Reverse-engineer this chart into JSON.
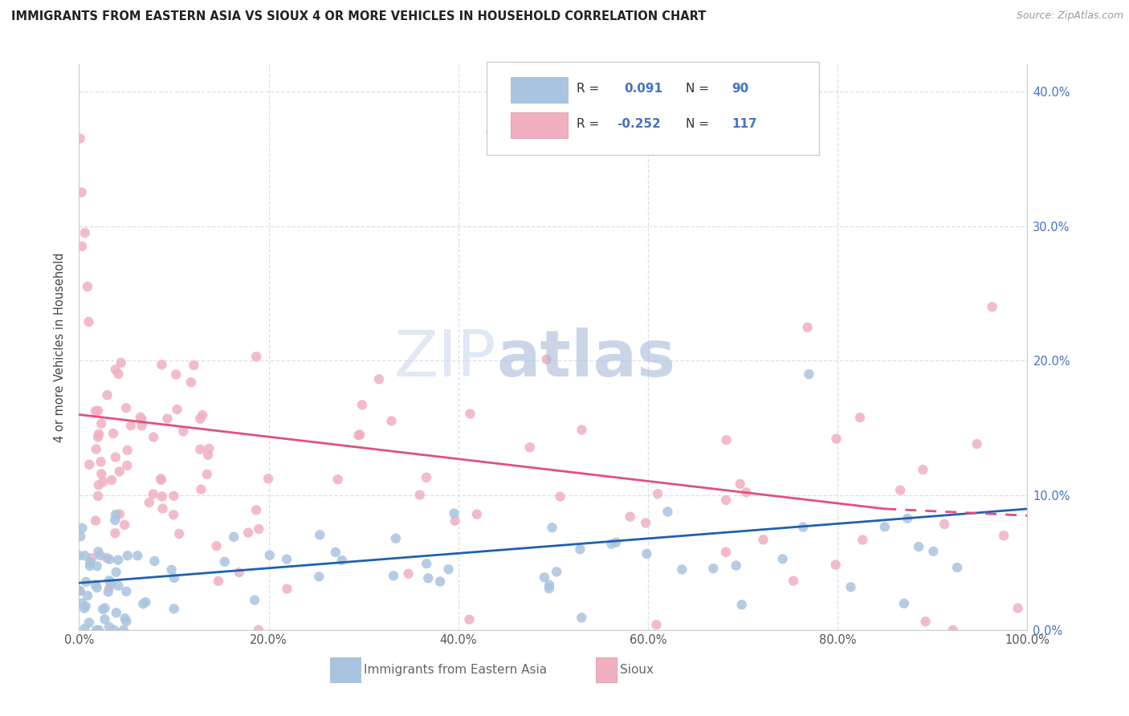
{
  "title": "IMMIGRANTS FROM EASTERN ASIA VS SIOUX 4 OR MORE VEHICLES IN HOUSEHOLD CORRELATION CHART",
  "source": "Source: ZipAtlas.com",
  "ylabel": "4 or more Vehicles in Household",
  "blue_color": "#a8c4e0",
  "pink_color": "#f0b0c0",
  "trend_blue": "#2060b0",
  "trend_pink": "#e05080",
  "legend_r_blue": "R =  0.091",
  "legend_n_blue": "N = 90",
  "legend_r_pink": "R = -0.252",
  "legend_n_pink": "N = 117",
  "legend_text_color": "#4472c4",
  "watermark_zip_color": "#c8d8ec",
  "watermark_atlas_color": "#a8c0dc",
  "grid_color": "#d8e0ec",
  "right_tick_color": "#4472c4"
}
